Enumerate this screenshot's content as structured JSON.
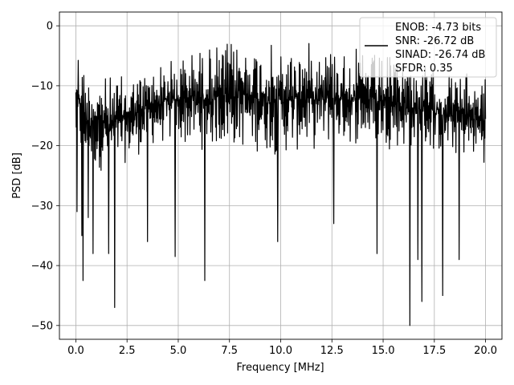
{
  "chart_data": {
    "type": "line",
    "xlabel": "Frequency [MHz]",
    "ylabel": "PSD [dB]",
    "xlim": [
      -0.8,
      20.8
    ],
    "ylim": [
      -52.3,
      2.3
    ],
    "x_ticks": [
      0.0,
      2.5,
      5.0,
      7.5,
      10.0,
      12.5,
      15.0,
      17.5,
      20.0
    ],
    "x_tick_labels": [
      "0.0",
      "2.5",
      "5.0",
      "7.5",
      "10.0",
      "12.5",
      "15.0",
      "17.5",
      "20.0"
    ],
    "y_ticks": [
      0,
      -10,
      -20,
      -30,
      -40,
      -50
    ],
    "y_tick_labels": [
      "0",
      "−10",
      "−20",
      "−30",
      "−40",
      "−50"
    ],
    "grid": true,
    "line_color": "#000000",
    "legend": {
      "location": "upper-right",
      "entries": [
        "ENOB: -4.73 bits",
        "SNR: -26.72 dB",
        "SINAD: -26.74 dB",
        "SFDR: 0.35"
      ]
    },
    "series": [
      {
        "x_start": 0.0,
        "x_end": 20.0,
        "points": 1024,
        "envelope_upper": [
          [
            0.0,
            -3
          ],
          [
            0.1,
            -1.5
          ],
          [
            0.5,
            -7
          ],
          [
            1.5,
            -8
          ],
          [
            2.5,
            -8
          ],
          [
            4.0,
            -6
          ],
          [
            6.0,
            -3
          ],
          [
            8.0,
            -2
          ],
          [
            10.0,
            -3
          ],
          [
            12.0,
            -2
          ],
          [
            14.0,
            -4
          ],
          [
            16.0,
            -5
          ],
          [
            18.0,
            -7
          ],
          [
            20.0,
            -8
          ]
        ],
        "envelope_lower": [
          [
            0.0,
            -22
          ],
          [
            0.5,
            -25
          ],
          [
            2.0,
            -24
          ],
          [
            4.0,
            -20
          ],
          [
            6.0,
            -21
          ],
          [
            8.0,
            -21
          ],
          [
            10.0,
            -22
          ],
          [
            12.0,
            -21
          ],
          [
            14.0,
            -20
          ],
          [
            16.0,
            -21
          ],
          [
            18.0,
            -22
          ],
          [
            20.0,
            -23
          ]
        ],
        "notable_minima": [
          [
            0.05,
            -31
          ],
          [
            0.3,
            -35
          ],
          [
            0.35,
            -42.5
          ],
          [
            0.6,
            -32
          ],
          [
            0.85,
            -38
          ],
          [
            1.6,
            -38
          ],
          [
            1.9,
            -47
          ],
          [
            3.5,
            -36
          ],
          [
            4.85,
            -38.5
          ],
          [
            6.3,
            -42.5
          ],
          [
            9.85,
            -36
          ],
          [
            12.6,
            -33
          ],
          [
            14.7,
            -38
          ],
          [
            16.3,
            -50
          ],
          [
            16.7,
            -39
          ],
          [
            16.9,
            -46
          ],
          [
            17.9,
            -45
          ],
          [
            18.7,
            -39
          ]
        ]
      }
    ]
  }
}
